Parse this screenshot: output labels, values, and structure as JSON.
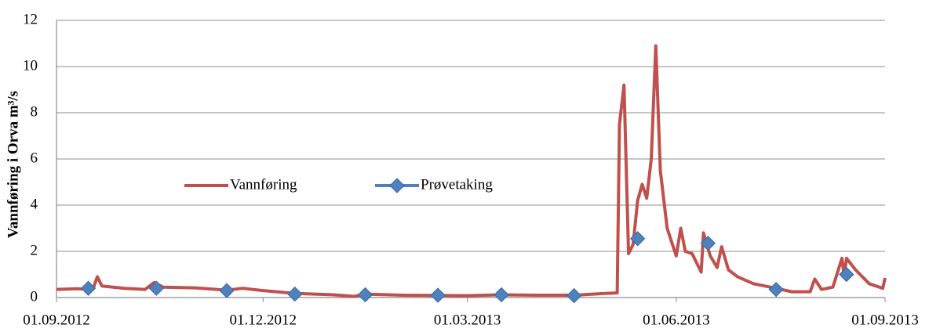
{
  "chart_data": {
    "type": "line",
    "y_label": "Vannføring i Orva m³/s",
    "ylim": [
      0,
      12
    ],
    "yticks": [
      0,
      2,
      4,
      6,
      8,
      10,
      12
    ],
    "grid": true,
    "xlim": [
      "01.09.2012",
      "01.09.2013"
    ],
    "xticks": [
      "01.09.2012",
      "01.12.2012",
      "01.03.2013",
      "01.06.2013",
      "01.09.2013"
    ],
    "series": [
      {
        "name": "Vannføring",
        "color": "#c0504d",
        "marker": "none",
        "x": [
          "01.09.2012",
          "10.09.2012",
          "17.09.2012",
          "19.09.2012",
          "21.09.2012",
          "01.10.2012",
          "10.10.2012",
          "14.10.2012",
          "18.10.2012",
          "01.11.2012",
          "15.11.2012",
          "22.11.2012",
          "01.12.2012",
          "15.12.2012",
          "01.01.2013",
          "10.01.2013",
          "15.01.2013",
          "01.02.2013",
          "01.03.2013",
          "15.03.2013",
          "01.04.2013",
          "17.04.2013",
          "01.05.2013",
          "06.05.2013",
          "07.05.2013",
          "09.05.2013",
          "11.05.2013",
          "13.05.2013",
          "15.05.2013",
          "17.05.2013",
          "19.05.2013",
          "21.05.2013",
          "23.05.2013",
          "25.05.2013",
          "28.05.2013",
          "01.06.2013",
          "03.06.2013",
          "05.06.2013",
          "08.06.2013",
          "12.06.2013",
          "13.06.2013",
          "16.06.2013",
          "19.06.2013",
          "21.06.2013",
          "24.06.2013",
          "28.06.2013",
          "05.07.2013",
          "15.07.2013",
          "22.07.2013",
          "30.07.2013",
          "01.08.2013",
          "04.08.2013",
          "09.08.2013",
          "13.08.2013",
          "14.08.2013",
          "15.08.2013",
          "19.08.2013",
          "25.08.2013",
          "31.08.2013",
          "01.09.2013"
        ],
        "values": [
          0.35,
          0.38,
          0.35,
          0.9,
          0.5,
          0.4,
          0.35,
          0.65,
          0.45,
          0.42,
          0.32,
          0.4,
          0.3,
          0.18,
          0.12,
          0.05,
          0.15,
          0.1,
          0.08,
          0.12,
          0.1,
          0.1,
          0.18,
          0.2,
          7.5,
          9.2,
          1.9,
          2.3,
          4.2,
          4.9,
          4.3,
          6.0,
          10.9,
          5.5,
          3.0,
          1.8,
          3.0,
          2.0,
          1.9,
          1.1,
          2.8,
          1.8,
          1.3,
          2.2,
          1.2,
          0.9,
          0.6,
          0.4,
          0.25,
          0.25,
          0.8,
          0.35,
          0.45,
          1.7,
          0.9,
          1.7,
          1.2,
          0.6,
          0.4,
          0.85
        ]
      },
      {
        "name": "Prøvetaking",
        "color": "#4f81bd",
        "marker": "diamond",
        "x": [
          "15.09.2012",
          "15.10.2012",
          "15.11.2012",
          "15.12.2012",
          "15.01.2013",
          "16.02.2013",
          "16.03.2013",
          "17.04.2013",
          "15.05.2013",
          "15.06.2013",
          "15.07.2013",
          "15.08.2013"
        ],
        "values": [
          0.4,
          0.4,
          0.3,
          0.15,
          0.12,
          0.1,
          0.12,
          0.08,
          2.55,
          2.35,
          0.35,
          1.0
        ]
      }
    ]
  }
}
